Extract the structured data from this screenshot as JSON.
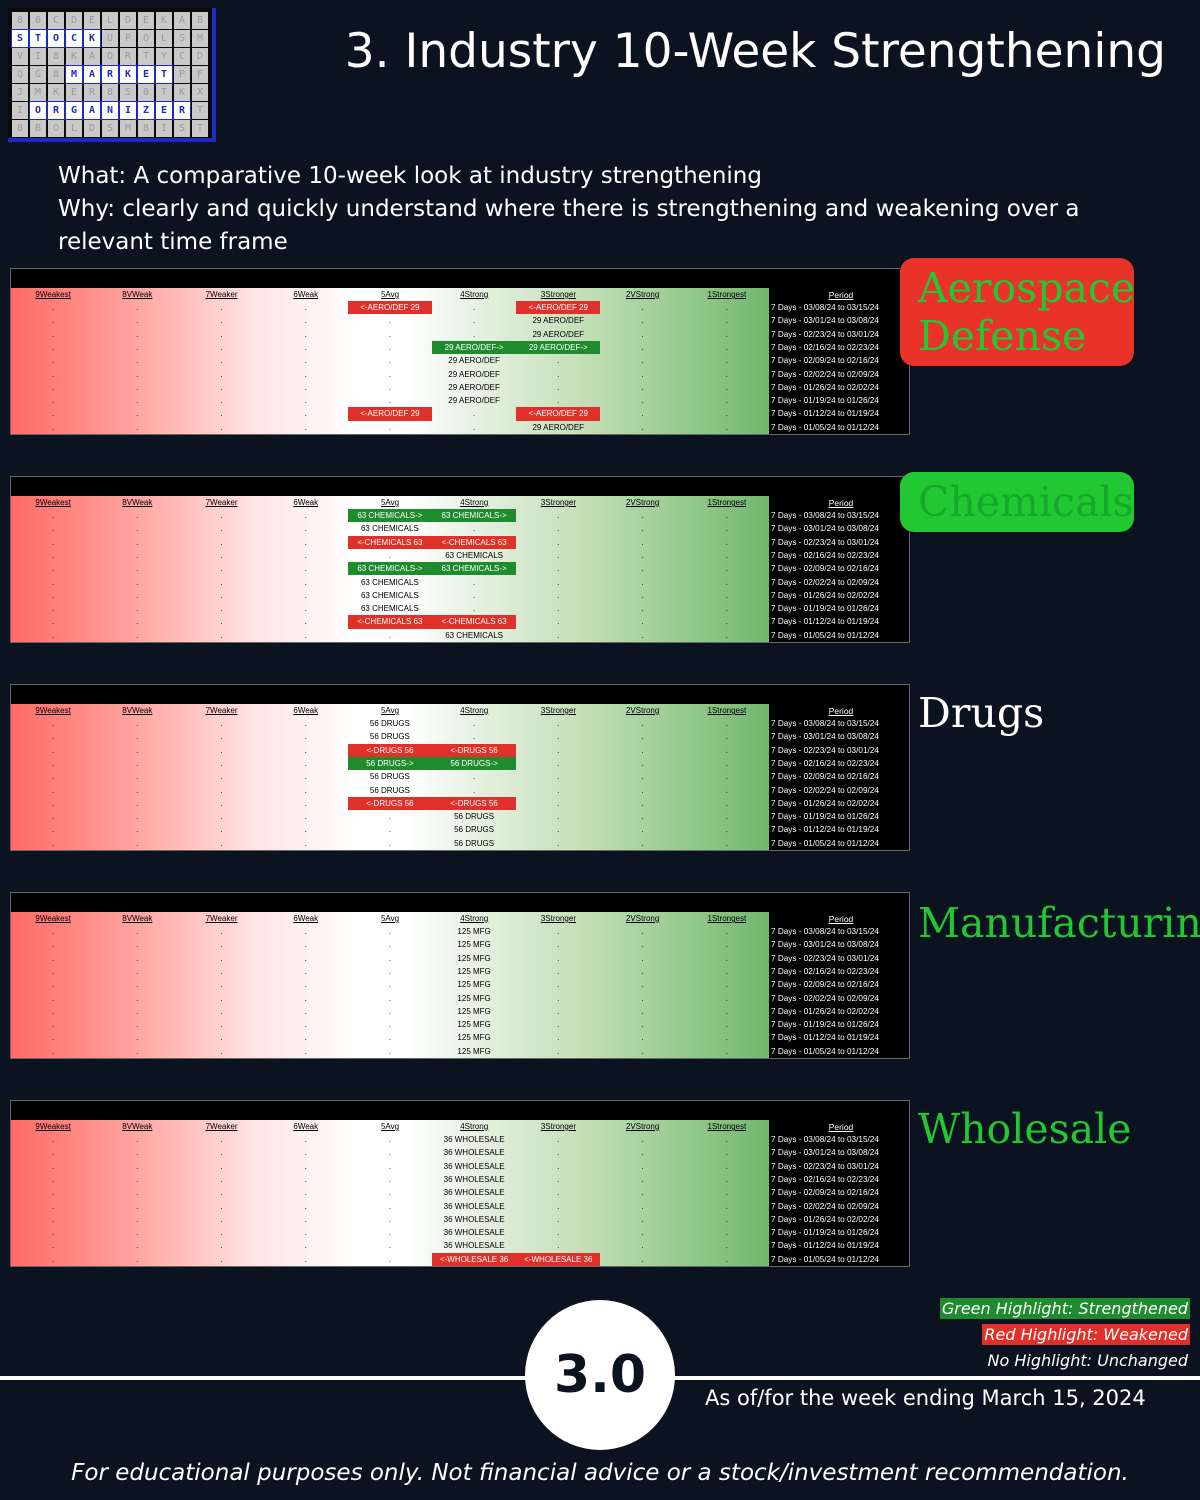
{
  "logo": {
    "word1": "STOCK",
    "word2": "MARKET",
    "word3": "ORGANIZER"
  },
  "title": "3. Industry 10-Week Strengthening",
  "description": {
    "what": "What: A comparative 10-week look at industry strengthening",
    "why": "Why: clearly and quickly understand where there is strengthening and weakening over a relevant time frame"
  },
  "table_headers": [
    "9Weakest",
    "8VWeak",
    "7Weaker",
    "6Weak",
    "5Avg",
    "4Strong",
    "3Stronger",
    "2VStrong",
    "1Strongest"
  ],
  "period_header": "Period",
  "periods": [
    "7 Days - 03/08/24 to 03/15/24",
    "7 Days - 03/01/24 to 03/08/24",
    "7 Days - 02/23/24 to 03/01/24",
    "7 Days - 02/16/24 to 02/23/24",
    "7 Days - 02/09/24 to 02/16/24",
    "7 Days - 02/02/24 to 02/09/24",
    "7 Days - 01/26/24 to 02/02/24",
    "7 Days - 01/19/24 to 01/26/24",
    "7 Days - 01/12/24 to 01/19/24",
    "7 Days - 01/05/24 to 01/12/24"
  ],
  "colors": {
    "strengthened": "#1e8c2d",
    "weakened": "#e0302a",
    "background": "#0c1320"
  },
  "industries": [
    {
      "name": "Aerospace Defense",
      "label_line1": "Aerospace",
      "label_line2": "Defense",
      "label_color": "#22c832",
      "label_bg": "#e8322a",
      "rows": [
        [
          {
            "c": 4,
            "t": "<-AERO/DEF 29",
            "h": "r"
          },
          {
            "c": 6,
            "t": "<-AERO/DEF 29",
            "h": "r"
          }
        ],
        [
          {
            "c": 6,
            "t": "29 AERO/DEF",
            "h": ""
          }
        ],
        [
          {
            "c": 6,
            "t": "29 AERO/DEF",
            "h": ""
          }
        ],
        [
          {
            "c": 5,
            "t": "29 AERO/DEF->",
            "h": "g"
          },
          {
            "c": 6,
            "t": "29 AERO/DEF->",
            "h": "g"
          }
        ],
        [
          {
            "c": 5,
            "t": "29 AERO/DEF",
            "h": ""
          }
        ],
        [
          {
            "c": 5,
            "t": "29 AERO/DEF",
            "h": ""
          }
        ],
        [
          {
            "c": 5,
            "t": "29 AERO/DEF",
            "h": ""
          }
        ],
        [
          {
            "c": 5,
            "t": "29 AERO/DEF",
            "h": ""
          }
        ],
        [
          {
            "c": 4,
            "t": "<-AERO/DEF 29",
            "h": "r"
          },
          {
            "c": 6,
            "t": "<-AERO/DEF 29",
            "h": "r"
          }
        ],
        [
          {
            "c": 6,
            "t": "29 AERO/DEF",
            "h": ""
          }
        ]
      ]
    },
    {
      "name": "Chemicals",
      "label_line1": "Chemicals",
      "label_line2": "",
      "label_color": "#16a82a",
      "label_bg": "#22c832",
      "rows": [
        [
          {
            "c": 4,
            "t": "63 CHEMICALS->",
            "h": "g"
          },
          {
            "c": 5,
            "t": "63 CHEMICALS->",
            "h": "g"
          }
        ],
        [
          {
            "c": 4,
            "t": "63 CHEMICALS",
            "h": ""
          }
        ],
        [
          {
            "c": 4,
            "t": "<-CHEMICALS 63",
            "h": "r"
          },
          {
            "c": 5,
            "t": "<-CHEMICALS 63",
            "h": "r"
          }
        ],
        [
          {
            "c": 5,
            "t": "63 CHEMICALS",
            "h": ""
          }
        ],
        [
          {
            "c": 4,
            "t": "63 CHEMICALS->",
            "h": "g"
          },
          {
            "c": 5,
            "t": "63 CHEMICALS->",
            "h": "g"
          }
        ],
        [
          {
            "c": 4,
            "t": "63 CHEMICALS",
            "h": ""
          }
        ],
        [
          {
            "c": 4,
            "t": "63 CHEMICALS",
            "h": ""
          }
        ],
        [
          {
            "c": 4,
            "t": "63 CHEMICALS",
            "h": ""
          }
        ],
        [
          {
            "c": 4,
            "t": "<-CHEMICALS 63",
            "h": "r"
          },
          {
            "c": 5,
            "t": "<-CHEMICALS 63",
            "h": "r"
          }
        ],
        [
          {
            "c": 5,
            "t": "63 CHEMICALS",
            "h": ""
          }
        ]
      ]
    },
    {
      "name": "Drugs",
      "label_line1": "Drugs",
      "label_line2": "",
      "label_color": "#ffffff",
      "label_bg": "",
      "rows": [
        [
          {
            "c": 4,
            "t": "56 DRUGS",
            "h": ""
          }
        ],
        [
          {
            "c": 4,
            "t": "56 DRUGS",
            "h": ""
          }
        ],
        [
          {
            "c": 4,
            "t": "<-DRUGS 56",
            "h": "r"
          },
          {
            "c": 5,
            "t": "<-DRUGS 56",
            "h": "r"
          }
        ],
        [
          {
            "c": 4,
            "t": "56 DRUGS->",
            "h": "g"
          },
          {
            "c": 5,
            "t": "56 DRUGS->",
            "h": "g"
          }
        ],
        [
          {
            "c": 4,
            "t": "56 DRUGS",
            "h": ""
          }
        ],
        [
          {
            "c": 4,
            "t": "56 DRUGS",
            "h": ""
          }
        ],
        [
          {
            "c": 4,
            "t": "<-DRUGS 56",
            "h": "r"
          },
          {
            "c": 5,
            "t": "<-DRUGS 56",
            "h": "r"
          }
        ],
        [
          {
            "c": 5,
            "t": "56 DRUGS",
            "h": ""
          }
        ],
        [
          {
            "c": 5,
            "t": "56 DRUGS",
            "h": ""
          }
        ],
        [
          {
            "c": 5,
            "t": "56 DRUGS",
            "h": ""
          }
        ]
      ]
    },
    {
      "name": "Manufacturing",
      "label_line1": "Manufacturing",
      "label_line2": "",
      "label_color": "#22c832",
      "label_bg": "",
      "rows": [
        [
          {
            "c": 5,
            "t": "125 MFG",
            "h": ""
          }
        ],
        [
          {
            "c": 5,
            "t": "125 MFG",
            "h": ""
          }
        ],
        [
          {
            "c": 5,
            "t": "125 MFG",
            "h": ""
          }
        ],
        [
          {
            "c": 5,
            "t": "125 MFG",
            "h": ""
          }
        ],
        [
          {
            "c": 5,
            "t": "125 MFG",
            "h": ""
          }
        ],
        [
          {
            "c": 5,
            "t": "125 MFG",
            "h": ""
          }
        ],
        [
          {
            "c": 5,
            "t": "125 MFG",
            "h": ""
          }
        ],
        [
          {
            "c": 5,
            "t": "125 MFG",
            "h": ""
          }
        ],
        [
          {
            "c": 5,
            "t": "125 MFG",
            "h": ""
          }
        ],
        [
          {
            "c": 5,
            "t": "125 MFG",
            "h": ""
          }
        ]
      ]
    },
    {
      "name": "Wholesale",
      "label_line1": "Wholesale",
      "label_line2": "",
      "label_color": "#22c832",
      "label_bg": "",
      "rows": [
        [
          {
            "c": 5,
            "t": "36 WHOLESALE",
            "h": ""
          }
        ],
        [
          {
            "c": 5,
            "t": "36 WHOLESALE",
            "h": ""
          }
        ],
        [
          {
            "c": 5,
            "t": "36 WHOLESALE",
            "h": ""
          }
        ],
        [
          {
            "c": 5,
            "t": "36 WHOLESALE",
            "h": ""
          }
        ],
        [
          {
            "c": 5,
            "t": "36 WHOLESALE",
            "h": ""
          }
        ],
        [
          {
            "c": 5,
            "t": "36 WHOLESALE",
            "h": ""
          }
        ],
        [
          {
            "c": 5,
            "t": "36 WHOLESALE",
            "h": ""
          }
        ],
        [
          {
            "c": 5,
            "t": "36 WHOLESALE",
            "h": ""
          }
        ],
        [
          {
            "c": 5,
            "t": "36 WHOLESALE",
            "h": ""
          }
        ],
        [
          {
            "c": 5,
            "t": "<-WHOLESALE 36",
            "h": "r"
          },
          {
            "c": 6,
            "t": "<-WHOLESALE 36",
            "h": "r"
          }
        ]
      ]
    }
  ],
  "legend": {
    "green": "Green Highlight: Strengthened",
    "red": "Red Highlight: Weakened",
    "none": "No Highlight: Unchanged"
  },
  "badge": "3.0",
  "as_of": "As of/for the week ending March 15, 2024",
  "disclaimer": "For educational purposes only. Not financial advice or a stock/investment recommendation."
}
